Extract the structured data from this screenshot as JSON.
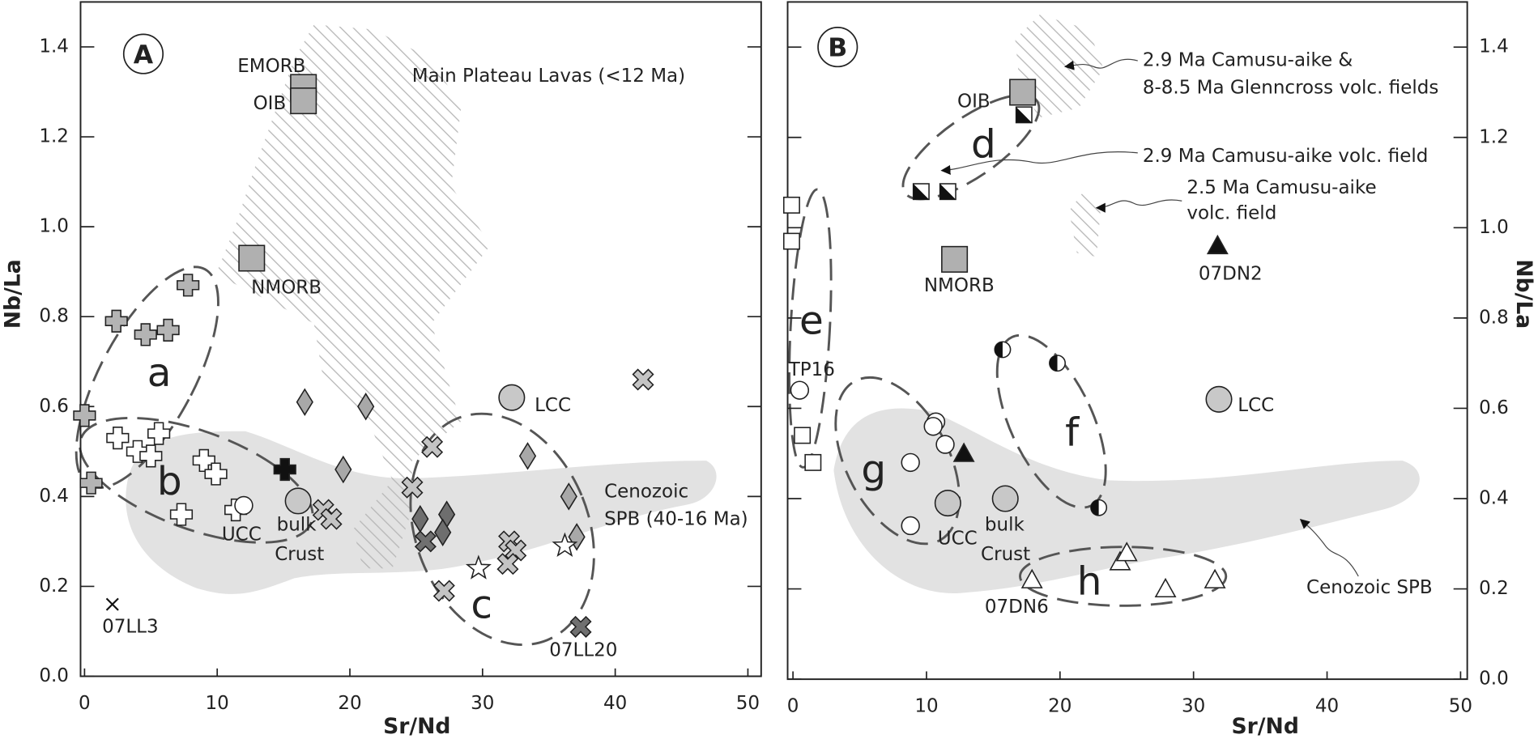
{
  "chart_data": [
    {
      "type": "scatter",
      "panel_label": "A",
      "x_label": "Sr/Nd",
      "y_label": "Nb/La",
      "y_axis_side": "left",
      "xlim": [
        -0.3,
        51
      ],
      "ylim": [
        0,
        1.5
      ],
      "xticks": [
        0,
        10,
        20,
        30,
        40,
        50
      ],
      "yticks": [
        {
          "value": 0,
          "label": "0.0"
        },
        0.2,
        0.4,
        0.6,
        0.8,
        {
          "value": 1,
          "label": "1.0"
        },
        1.2,
        1.4
      ],
      "series": [
        {
          "marker": "plus",
          "color": "#b4b4b4",
          "x": [
            0,
            0.5,
            2.4,
            4.6,
            6.3,
            7.8
          ],
          "values": [
            0.58,
            0.43,
            0.79,
            0.76,
            0.77,
            0.87
          ]
        },
        {
          "marker": "plus",
          "color": "#ffffff",
          "x": [
            2.5,
            4,
            5,
            5.6,
            9,
            9.9,
            7.3,
            11.4
          ],
          "values": [
            0.53,
            0.5,
            0.49,
            0.54,
            0.48,
            0.45,
            0.36,
            0.37
          ]
        },
        {
          "marker": "plus",
          "color": "#111111",
          "x": [
            15.1
          ],
          "values": [
            0.46
          ]
        },
        {
          "marker": "diamond",
          "color": "#a8a8a8",
          "x": [
            16.6,
            21.2,
            19.5,
            33.4,
            36.5,
            37.1
          ],
          "values": [
            0.61,
            0.6,
            0.46,
            0.49,
            0.4,
            0.31
          ]
        },
        {
          "marker": "diamond",
          "color": "#6e6e6e",
          "x": [
            25.3,
            27.3,
            27
          ],
          "values": [
            0.35,
            0.36,
            0.32
          ]
        },
        {
          "marker": "x",
          "color": "#c4c4c4",
          "x": [
            26.2,
            24.7,
            42.1,
            27.1,
            32,
            32.5,
            31.9,
            18,
            18.6
          ],
          "values": [
            0.51,
            0.42,
            0.66,
            0.19,
            0.3,
            0.28,
            0.25,
            0.37,
            0.35
          ]
        },
        {
          "marker": "x",
          "color": "#707070",
          "x": [
            25.7,
            37.4
          ],
          "values": [
            0.3,
            0.11
          ]
        },
        {
          "marker": "star",
          "color": "#ffffff",
          "x": [
            29.7,
            36.2
          ],
          "values": [
            0.24,
            0.29
          ]
        },
        {
          "marker": "smallx",
          "color": "#111111",
          "x": [
            2.1
          ],
          "values": [
            0.16
          ]
        },
        {
          "marker": "square",
          "color": "#b0b0b0",
          "x": [
            16.5,
            16.5,
            12.6
          ],
          "values": [
            1.31,
            1.28,
            0.93
          ]
        },
        {
          "marker": "circle",
          "color": "#c8c8c8",
          "x": [
            32.2,
            16.1
          ],
          "values": [
            0.62,
            0.39
          ]
        },
        {
          "marker": "circle",
          "color": "#ffffff",
          "x": [
            12
          ],
          "values": [
            0.38
          ]
        }
      ],
      "annotations": [
        "EMORB",
        "OIB",
        "Main Plateau Lavas (<12 Ma)",
        "NMORB",
        "a",
        "b",
        "c",
        "LCC",
        "UCC",
        "bulk",
        "Crust",
        "Cenozoic",
        "SPB (40-16 Ma)",
        "07LL3",
        "07LL20"
      ]
    },
    {
      "type": "scatter",
      "panel_label": "B",
      "x_label": "Sr/Nd",
      "y_label": "Nb/La",
      "y_axis_side": "right",
      "xlim": [
        -0.4,
        50.5
      ],
      "ylim": [
        0,
        1.5
      ],
      "xticks": [
        0,
        10,
        20,
        30,
        40,
        50
      ],
      "yticks": [
        {
          "value": 0,
          "label": "0.0"
        },
        0.2,
        0.4,
        0.6,
        0.8,
        {
          "value": 1,
          "label": "1.0"
        },
        1.2,
        1.4
      ],
      "series": [
        {
          "marker": "square",
          "color": "#ffffff",
          "x": [
            -0.1,
            -0.1,
            0.7,
            1.5
          ],
          "values": [
            1.05,
            0.97,
            0.54,
            0.48
          ]
        },
        {
          "marker": "halfsquare",
          "color": "#111111",
          "x": [
            9.6,
            11.6,
            17.3
          ],
          "values": [
            1.08,
            1.08,
            1.25
          ]
        },
        {
          "marker": "circle",
          "color": "#ffffff",
          "x": [
            0.5,
            10.7,
            10.5,
            11.4,
            8.8,
            8.8
          ],
          "values": [
            0.64,
            0.57,
            0.56,
            0.52,
            0.48,
            0.34
          ]
        },
        {
          "marker": "triangle",
          "color": "#111111",
          "x": [
            12.8,
            31.8
          ],
          "values": [
            0.5,
            0.96
          ]
        },
        {
          "marker": "halfcircle",
          "color": "#111111",
          "x": [
            15.7,
            19.8,
            22.9
          ],
          "values": [
            0.73,
            0.7,
            0.38
          ]
        },
        {
          "marker": "triangle",
          "color": "#ffffff",
          "x": [
            17.9,
            24.5,
            25,
            27.9,
            31.6
          ],
          "values": [
            0.22,
            0.26,
            0.28,
            0.2,
            0.22
          ]
        },
        {
          "marker": "square",
          "color": "#b0b0b0",
          "x": [
            17.2,
            12.1
          ],
          "values": [
            1.3,
            0.93
          ]
        },
        {
          "marker": "circle",
          "color": "#c8c8c8",
          "x": [
            31.9,
            11.6,
            15.9
          ],
          "values": [
            0.62,
            0.39,
            0.4
          ]
        }
      ],
      "annotations": [
        "OIB",
        "d",
        "2.9 Ma Camusu-aike &",
        "8-8.5 Ma Glenncross volc. fields",
        "2.9 Ma Camusu-aike volc. field",
        "2.5 Ma Camusu-aike",
        "volc. field",
        "NMORB",
        "07DN2",
        "e",
        "TP16",
        "f",
        "g",
        "LCC",
        "UCC",
        "bulk",
        "Crust",
        "h",
        "07DN6",
        "Cenozoic SPB"
      ]
    }
  ]
}
